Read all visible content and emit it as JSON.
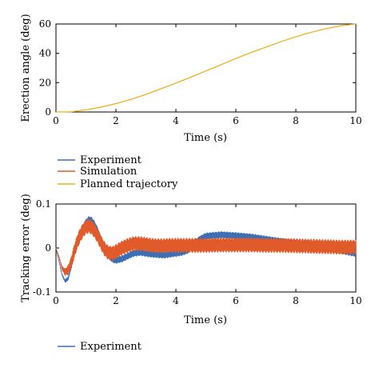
{
  "chart_data": [
    {
      "type": "line",
      "xlabel": "Time (s)",
      "ylabel": "Erection angle (deg)",
      "xlim": [
        0,
        10
      ],
      "ylim": [
        0,
        60
      ],
      "xticks": [
        "0",
        "2",
        "4",
        "6",
        "8",
        "10"
      ],
      "yticks": [
        "0",
        "20",
        "40",
        "60"
      ],
      "grid": false,
      "series": [
        {
          "name": "Planned trajectory",
          "color": "#EDB120",
          "x": [
            0,
            0.5,
            1,
            1.5,
            2,
            2.5,
            3,
            3.5,
            4,
            4.5,
            5,
            5.5,
            6,
            6.5,
            7,
            7.5,
            8,
            8.5,
            9,
            9.5,
            10
          ],
          "y": [
            0,
            0.15,
            1.48,
            3.3,
            5.7,
            8.6,
            12.0,
            15.8,
            19.7,
            23.8,
            28.0,
            32.2,
            36.5,
            40.5,
            44.2,
            47.9,
            51.3,
            54.3,
            56.8,
            58.8,
            60
          ]
        }
      ]
    },
    {
      "type": "line",
      "xlabel": "Time (s)",
      "ylabel": "Tracking error (deg)",
      "xlim": [
        0,
        10
      ],
      "ylim": [
        -0.1,
        0.1
      ],
      "xticks": [
        "0",
        "2",
        "4",
        "6",
        "8",
        "10"
      ],
      "yticks": [
        "-0.1",
        "0",
        "0.1"
      ],
      "grid": false,
      "series": [
        {
          "name": "Experiment",
          "color": "#3C6FB6",
          "x": [
            0,
            0.1,
            0.2,
            0.3,
            0.4,
            0.5,
            0.6,
            0.7,
            0.8,
            0.9,
            1.0,
            1.1,
            1.2,
            1.3,
            1.4,
            1.5,
            1.6,
            1.7,
            1.8,
            1.9,
            2.0,
            2.2,
            2.4,
            2.6,
            2.8,
            3.0,
            3.2,
            3.4,
            3.6,
            3.8,
            4.0,
            4.2,
            4.4,
            4.6,
            4.8,
            5.0,
            5.5,
            6.0,
            6.5,
            7.0,
            7.5,
            8.0,
            8.5,
            9.0,
            9.5,
            9.8,
            10.0
          ],
          "y": [
            0,
            -0.03,
            -0.06,
            -0.075,
            -0.07,
            -0.045,
            -0.015,
            0.01,
            0.03,
            0.045,
            0.058,
            0.065,
            0.062,
            0.052,
            0.038,
            0.02,
            0.002,
            -0.012,
            -0.02,
            -0.026,
            -0.028,
            -0.025,
            -0.018,
            -0.012,
            -0.01,
            -0.012,
            -0.014,
            -0.015,
            -0.016,
            -0.014,
            -0.012,
            -0.01,
            -0.005,
            0.01,
            0.02,
            0.027,
            0.03,
            0.028,
            0.025,
            0.02,
            0.015,
            0.01,
            0.005,
            0.0,
            -0.005,
            -0.01,
            -0.012
          ],
          "oscillation_amplitude": 0.008
        },
        {
          "name": "Simulation",
          "color": "#E05A2A",
          "x": [
            0,
            0.1,
            0.2,
            0.3,
            0.4,
            0.5,
            0.6,
            0.7,
            0.8,
            0.9,
            1.0,
            1.1,
            1.2,
            1.3,
            1.4,
            1.5,
            1.6,
            1.7,
            1.8,
            1.9,
            2.0,
            2.2,
            2.4,
            2.6,
            2.8,
            3.0,
            3.2,
            3.4,
            3.6,
            3.8,
            4.0,
            4.5,
            5.0,
            5.5,
            6.0,
            6.5,
            7.0,
            7.5,
            8.0,
            8.5,
            9.0,
            9.5,
            10.0
          ],
          "y": [
            0,
            -0.02,
            -0.045,
            -0.055,
            -0.05,
            -0.035,
            -0.01,
            0.012,
            0.028,
            0.04,
            0.048,
            0.05,
            0.046,
            0.038,
            0.026,
            0.012,
            0.0,
            -0.008,
            -0.012,
            -0.012,
            -0.008,
            0.0,
            0.006,
            0.01,
            0.01,
            0.008,
            0.006,
            0.005,
            0.005,
            0.006,
            0.006,
            0.006,
            0.006,
            0.007,
            0.007,
            0.007,
            0.006,
            0.006,
            0.005,
            0.004,
            0.003,
            0.002,
            0.002
          ],
          "oscillation_amplitude": 0.017
        }
      ]
    }
  ],
  "legends": {
    "top": [
      "Experiment",
      "Simulation",
      "Planned trajectory"
    ],
    "bottom": [
      "Experiment"
    ]
  }
}
